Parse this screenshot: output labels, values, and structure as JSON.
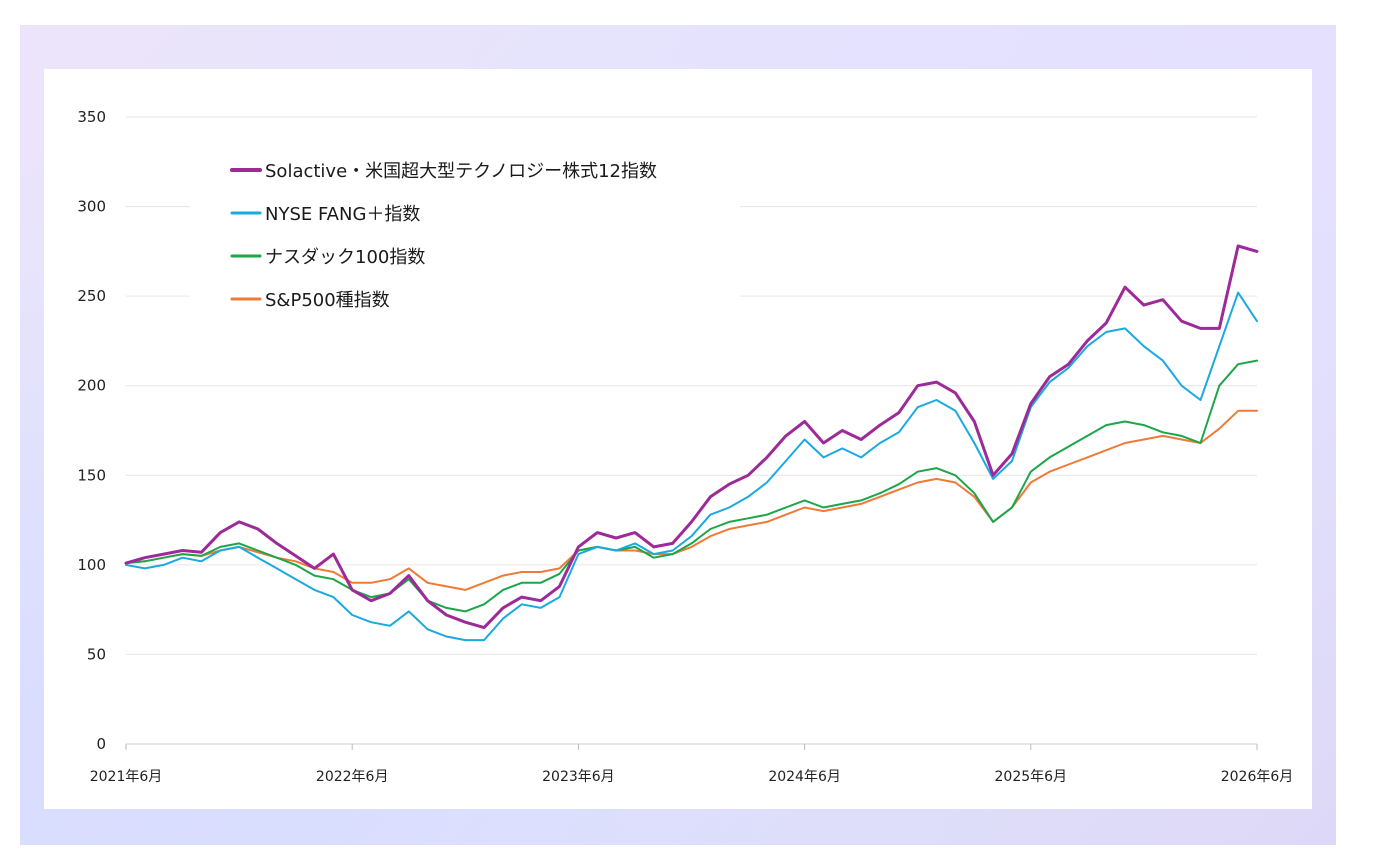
{
  "chart_data": {
    "type": "line",
    "ylim": [
      0,
      350
    ],
    "yticks": [
      0,
      50,
      100,
      150,
      200,
      250,
      300,
      350
    ],
    "xticks": [
      "2021年6月",
      "2022年6月",
      "2023年6月",
      "2024年6月",
      "2025年6月",
      "2026年6月"
    ],
    "x": [
      "2021-06",
      "2021-07",
      "2021-08",
      "2021-09",
      "2021-10",
      "2021-11",
      "2021-12",
      "2022-01",
      "2022-02",
      "2022-03",
      "2022-04",
      "2022-05",
      "2022-06",
      "2022-07",
      "2022-08",
      "2022-09",
      "2022-10",
      "2022-11",
      "2022-12",
      "2023-01",
      "2023-02",
      "2023-03",
      "2023-04",
      "2023-05",
      "2023-06",
      "2023-07",
      "2023-08",
      "2023-09",
      "2023-10",
      "2023-11",
      "2023-12",
      "2024-01",
      "2024-02",
      "2024-03",
      "2024-04",
      "2024-05",
      "2024-06",
      "2024-07",
      "2024-08",
      "2024-09",
      "2024-10",
      "2024-11",
      "2024-12",
      "2025-01",
      "2025-02",
      "2025-03",
      "2025-04",
      "2025-05",
      "2025-06",
      "2025-07",
      "2025-08",
      "2025-09",
      "2025-10",
      "2025-11",
      "2025-12",
      "2026-01",
      "2026-02",
      "2026-03",
      "2026-04",
      "2026-05",
      "2026-06"
    ],
    "legend": "top-left",
    "series": [
      {
        "name": "Solactive・米国超大型テクノロジー株式12指数",
        "color": "#9c2a98",
        "width": 3,
        "values": [
          101,
          104,
          106,
          108,
          107,
          118,
          124,
          120,
          112,
          105,
          98,
          106,
          86,
          80,
          84,
          94,
          80,
          72,
          68,
          65,
          76,
          82,
          80,
          88,
          110,
          118,
          115,
          118,
          110,
          112,
          124,
          138,
          145,
          150,
          160,
          172,
          180,
          168,
          175,
          170,
          178,
          185,
          200,
          202,
          196,
          180,
          150,
          162,
          190,
          205,
          212,
          225,
          235,
          255,
          245,
          248,
          236,
          232,
          232,
          278,
          275
        ]
      },
      {
        "name": "NYSE FANG＋指数",
        "color": "#1aa9e0",
        "width": 2,
        "values": [
          100,
          98,
          100,
          104,
          102,
          108,
          110,
          104,
          98,
          92,
          86,
          82,
          72,
          68,
          66,
          74,
          64,
          60,
          58,
          58,
          70,
          78,
          76,
          82,
          106,
          110,
          108,
          112,
          106,
          108,
          116,
          128,
          132,
          138,
          146,
          158,
          170,
          160,
          165,
          160,
          168,
          174,
          188,
          192,
          186,
          168,
          148,
          158,
          188,
          202,
          210,
          222,
          230,
          232,
          222,
          214,
          200,
          192,
          222,
          252,
          236
        ]
      },
      {
        "name": "ナスダック100指数",
        "color": "#1ca64a",
        "width": 2,
        "values": [
          101,
          102,
          104,
          106,
          105,
          110,
          112,
          108,
          104,
          100,
          94,
          92,
          86,
          82,
          84,
          92,
          80,
          76,
          74,
          78,
          86,
          90,
          90,
          95,
          108,
          110,
          108,
          110,
          104,
          106,
          112,
          120,
          124,
          126,
          128,
          132,
          136,
          132,
          134,
          136,
          140,
          145,
          152,
          154,
          150,
          140,
          124,
          132,
          152,
          160,
          166,
          172,
          178,
          180,
          178,
          174,
          172,
          168,
          200,
          212,
          214
        ]
      },
      {
        "name": "S&P500種指数",
        "color": "#ee7a38",
        "width": 2,
        "values": [
          101,
          102,
          104,
          106,
          105,
          108,
          110,
          107,
          104,
          102,
          98,
          96,
          90,
          90,
          92,
          98,
          90,
          88,
          86,
          90,
          94,
          96,
          96,
          98,
          108,
          110,
          108,
          108,
          106,
          106,
          110,
          116,
          120,
          122,
          124,
          128,
          132,
          130,
          132,
          134,
          138,
          142,
          146,
          148,
          146,
          138,
          124,
          132,
          146,
          152,
          156,
          160,
          164,
          168,
          170,
          172,
          170,
          168,
          176,
          186,
          186
        ]
      }
    ]
  }
}
